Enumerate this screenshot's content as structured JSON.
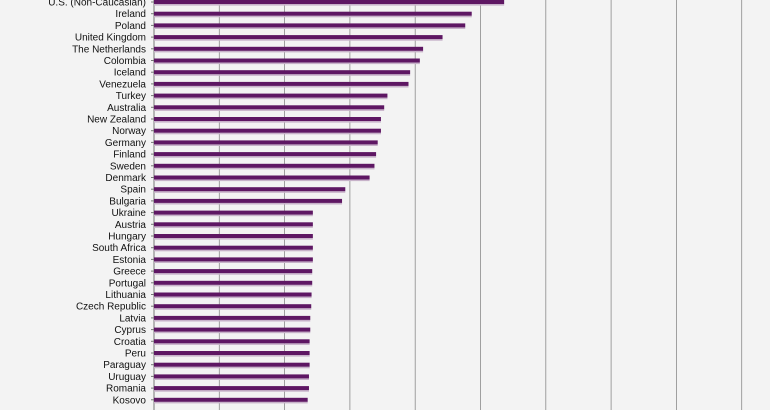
{
  "colors": {
    "bar": "#5e1763",
    "bar_shadow": "#c7b2c9",
    "background": "#f3f3f3",
    "grid": "#8a8a8a"
  },
  "chart_data": {
    "type": "bar",
    "orientation": "horizontal",
    "grid": true,
    "legend": "none",
    "xlim": [
      0,
      19
    ],
    "gridline_count": 10,
    "categories": [
      "U.S. (Non-Caucasian)",
      "Ireland",
      "Poland",
      "United Kingdom",
      "The Netherlands",
      "Colombia",
      "Iceland",
      "Venezuela",
      "Turkey",
      "Australia",
      "New Zealand",
      "Norway",
      "Germany",
      "Finland",
      "Sweden",
      "Denmark",
      "Spain",
      "Bulgaria",
      "Ukraine",
      "Austria",
      "Hungary",
      "South Africa",
      "Estonia",
      "Greece",
      "Portugal",
      "Lithuania",
      "Czech Republic",
      "Latvia",
      "Cyprus",
      "Croatia",
      "Peru",
      "Paraguay",
      "Uruguay",
      "Romania",
      "Kosovo"
    ],
    "values": [
      10.8,
      9.8,
      9.6,
      8.9,
      8.3,
      8.2,
      7.9,
      7.85,
      7.2,
      7.1,
      7.0,
      7.0,
      6.9,
      6.85,
      6.8,
      6.65,
      5.9,
      5.8,
      4.9,
      4.9,
      4.9,
      4.9,
      4.9,
      4.88,
      4.88,
      4.86,
      4.85,
      4.82,
      4.82,
      4.8,
      4.8,
      4.8,
      4.78,
      4.78,
      4.74
    ]
  }
}
